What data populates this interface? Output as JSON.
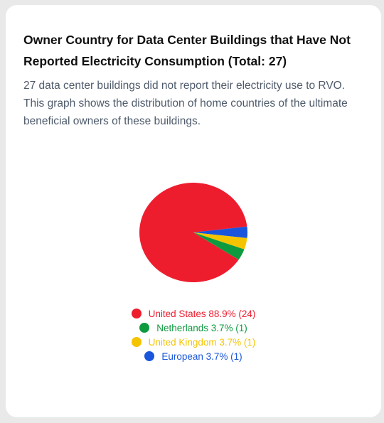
{
  "card": {
    "title": "Owner Country for Data Center Buildings that Have Not Reported Electricity Consumption (Total: 27)",
    "description": "27 data center buildings did not report their electricity use to RVO. This graph shows the distribution of home countries of the ultimate beneficial owners of these buildings."
  },
  "chart_data": {
    "type": "pie",
    "title": "Owner Country for Data Center Buildings that Have Not Reported Electricity Consumption (Total: 27)",
    "total": 27,
    "slices": [
      {
        "label": "United States",
        "value": 24,
        "percent": 88.9,
        "legend": "United States 88.9% (24)",
        "color": "#ee1d2e"
      },
      {
        "label": "Netherlands",
        "value": 1,
        "percent": 3.7,
        "legend": "Netherlands 3.7% (1)",
        "color": "#0f9a3f"
      },
      {
        "label": "United Kingdom",
        "value": 1,
        "percent": 3.7,
        "legend": "United Kingdom 3.7% (1)",
        "color": "#f5c400"
      },
      {
        "label": "European",
        "value": 1,
        "percent": 3.7,
        "legend": "European 3.7% (1)",
        "color": "#1a56db"
      }
    ],
    "legend_placement": "bottom"
  }
}
